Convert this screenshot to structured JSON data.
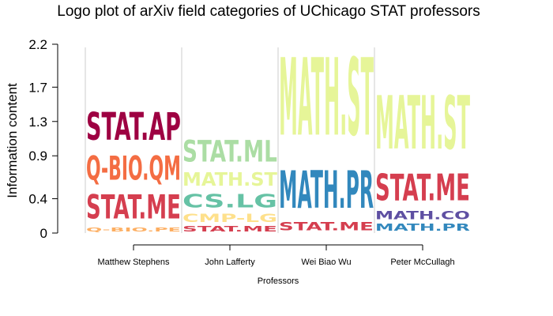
{
  "chart_data": {
    "type": "logo",
    "title": "Logo plot of arXiv field categories of UChicago STAT professors",
    "xlabel": "Professors",
    "ylabel": "Information content",
    "yticks": [
      "0",
      "0.4",
      "0.9",
      "1.3",
      "1.7",
      "2.2"
    ],
    "ytick_values": [
      0,
      0.4,
      0.9,
      1.3,
      1.7,
      2.2
    ],
    "ylim": [
      0,
      2.2
    ],
    "categories": [
      "Matthew Stephens",
      "John Lafferty",
      "Wei Biao Wu",
      "Peter McCullagh"
    ],
    "stacks": [
      {
        "professor": "Matthew Stephens",
        "segments": [
          {
            "label": "Q-BIO.PE",
            "height": 0.08,
            "color": "#FDAE61"
          },
          {
            "label": "STAT.ME",
            "height": 0.45,
            "color": "#D53E4F"
          },
          {
            "label": "Q-BIO.QM",
            "height": 0.45,
            "color": "#F46D43"
          },
          {
            "label": "STAT.AP",
            "height": 0.52,
            "color": "#9E0142"
          }
        ]
      },
      {
        "professor": "John Lafferty",
        "segments": [
          {
            "label": "STAT.ME",
            "height": 0.1,
            "color": "#D53E4F"
          },
          {
            "label": "CMP-LG",
            "height": 0.15,
            "color": "#FEE08B"
          },
          {
            "label": "CS.LG",
            "height": 0.25,
            "color": "#66C2A5"
          },
          {
            "label": "MATH.ST",
            "height": 0.25,
            "color": "#E6F598"
          },
          {
            "label": "STAT.ML",
            "height": 0.4,
            "color": "#ABDDA4"
          }
        ]
      },
      {
        "professor": "Wei Biao Wu",
        "segments": [
          {
            "label": "STAT.ME",
            "height": 0.15,
            "color": "#D53E4F"
          },
          {
            "label": "MATH.PR",
            "height": 0.7,
            "color": "#3288BD"
          },
          {
            "label": "MATH.ST",
            "height": 1.45,
            "color": "#E6F598"
          }
        ]
      },
      {
        "professor": "Peter McCullagh",
        "segments": [
          {
            "label": "MATH.PR",
            "height": 0.13,
            "color": "#3288BD"
          },
          {
            "label": "MATH.CO",
            "height": 0.15,
            "color": "#5E4FA2"
          },
          {
            "label": "STAT.ME",
            "height": 0.5,
            "color": "#D53E4F"
          },
          {
            "label": "MATH.ST",
            "height": 1.0,
            "color": "#E6F598"
          }
        ]
      }
    ]
  }
}
